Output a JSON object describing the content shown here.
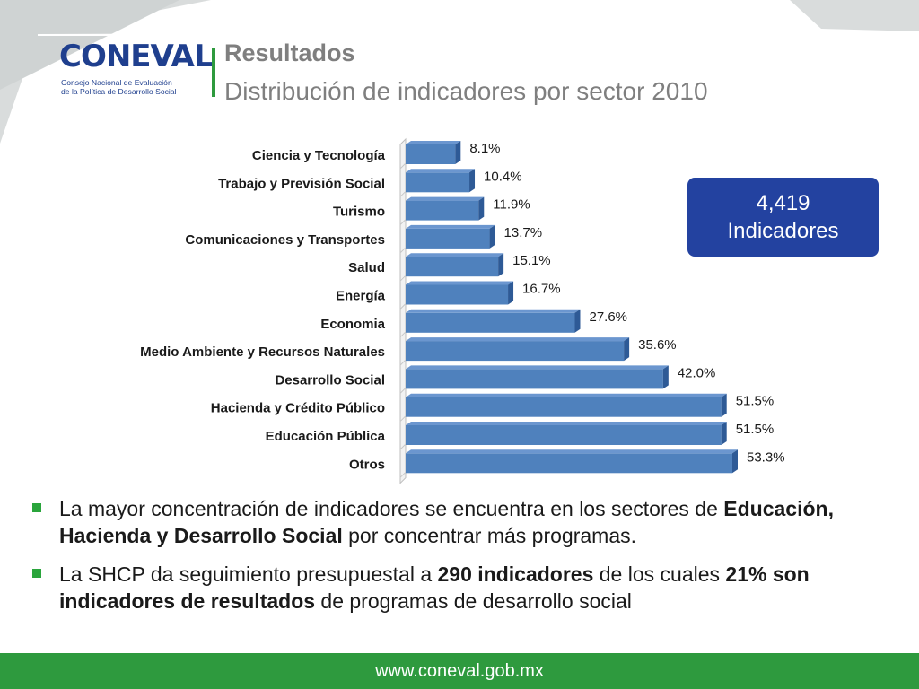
{
  "header": {
    "title": "Resultados",
    "subtitle": "Distribución de indicadores por sector 2010"
  },
  "logo": {
    "wordmark": "CONEVAL",
    "line1": "Consejo Nacional de Evaluación",
    "line2": "de la Política de Desarrollo Social"
  },
  "callout": {
    "value": "4,419",
    "label": "Indicadores"
  },
  "bullets": [
    {
      "parts": [
        {
          "text": "La mayor concentración de indicadores se encuentra en los sectores de ",
          "bold": false
        },
        {
          "text": "Educación, Hacienda y Desarrollo Social",
          "bold": true
        },
        {
          "text": " por concentrar más programas.",
          "bold": false
        }
      ]
    },
    {
      "parts": [
        {
          "text": "La SHCP da seguimiento presupuestal a ",
          "bold": false
        },
        {
          "text": "290  indicadores",
          "bold": true
        },
        {
          "text": " de los cuales ",
          "bold": false
        },
        {
          "text": "21% son indicadores de resultados",
          "bold": true
        },
        {
          "text": " de programas de desarrollo social",
          "bold": false
        }
      ]
    }
  ],
  "footer": {
    "url": "www.coneval.gob.mx"
  },
  "colors": {
    "bar": "#4f81bd",
    "bar_dark": "#2e5a96",
    "brand_blue": "#1f3f8e",
    "callout_bg": "#2342a0",
    "green": "#2e9a3e",
    "title_gray": "#7f7f7f"
  },
  "chart_data": {
    "type": "bar",
    "orientation": "horizontal",
    "title": "",
    "xlabel": "",
    "ylabel": "",
    "categories": [
      "Ciencia y Tecnología",
      "Trabajo y Previsión Social",
      "Turismo",
      "Comunicaciones y Transportes",
      "Salud",
      "Energía",
      "Economia",
      "Medio Ambiente y Recursos Naturales",
      "Desarrollo Social",
      "Hacienda y Crédito Público",
      "Educación Pública",
      "Otros"
    ],
    "values": [
      8.1,
      10.4,
      11.9,
      13.7,
      15.1,
      16.7,
      27.6,
      35.6,
      42.0,
      51.5,
      51.5,
      53.3
    ],
    "data_labels": [
      "8.1%",
      "10.4%",
      "11.9%",
      "13.7%",
      "15.1%",
      "16.7%",
      "27.6%",
      "35.6%",
      "42.0%",
      "51.5%",
      "51.5%",
      "53.3%"
    ],
    "xlim": [
      0,
      53.3
    ],
    "grid": false,
    "legend": "none"
  }
}
